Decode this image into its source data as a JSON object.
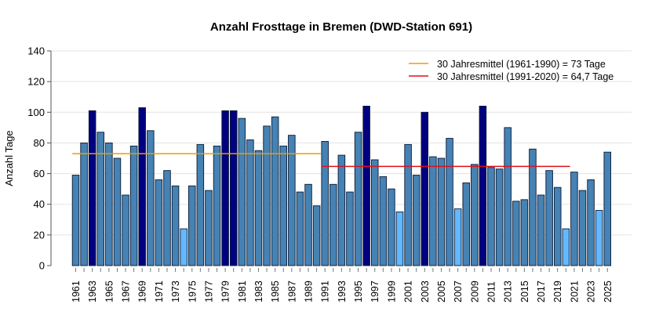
{
  "chart_data": {
    "type": "bar",
    "title": "Anzahl Frosttage in Bremen (DWD-Station 691)",
    "xlabel": "",
    "ylabel": "Anzahl Tage",
    "ylim": [
      0,
      140
    ],
    "yticks": [
      0,
      20,
      40,
      60,
      80,
      100,
      120,
      140
    ],
    "grid": true,
    "legend_position": "top-right",
    "categories": [
      1961,
      1962,
      1963,
      1964,
      1965,
      1966,
      1967,
      1968,
      1969,
      1970,
      1971,
      1972,
      1973,
      1974,
      1975,
      1976,
      1977,
      1978,
      1979,
      1980,
      1981,
      1982,
      1983,
      1984,
      1985,
      1986,
      1987,
      1988,
      1989,
      1990,
      1991,
      1992,
      1993,
      1994,
      1995,
      1996,
      1997,
      1998,
      1999,
      2000,
      2001,
      2002,
      2003,
      2004,
      2005,
      2006,
      2007,
      2008,
      2009,
      2010,
      2011,
      2012,
      2013,
      2014,
      2015,
      2016,
      2017,
      2018,
      2019,
      2020,
      2021,
      2022,
      2023,
      2024,
      2025
    ],
    "values": [
      59,
      80,
      101,
      87,
      80,
      70,
      46,
      78,
      103,
      88,
      56,
      62,
      52,
      24,
      52,
      79,
      49,
      78,
      101,
      101,
      96,
      82,
      75,
      91,
      97,
      78,
      85,
      48,
      53,
      39,
      81,
      53,
      72,
      48,
      87,
      104,
      69,
      58,
      50,
      35,
      79,
      59,
      100,
      71,
      70,
      83,
      37,
      54,
      66,
      104,
      64,
      63,
      90,
      42,
      43,
      76,
      46,
      62,
      51,
      24,
      61,
      49,
      56,
      36,
      74
    ],
    "bar_colors": {
      "normal": "#4682B4",
      "high": "#000080",
      "low": "#63B8FF"
    },
    "color_rule": "high if value >= 100, low if value <= 37",
    "reference_lines": [
      {
        "label": "30 Jahresmittel (1961-1990) = 73 Tage",
        "value": 73,
        "from": 1961,
        "to": 1990,
        "color": "#E8A000"
      },
      {
        "label": "30 Jahresmittel (1991-2020) = 64,7 Tage",
        "value": 64.7,
        "from": 1991,
        "to": 2020,
        "color": "#E0101A"
      }
    ]
  }
}
